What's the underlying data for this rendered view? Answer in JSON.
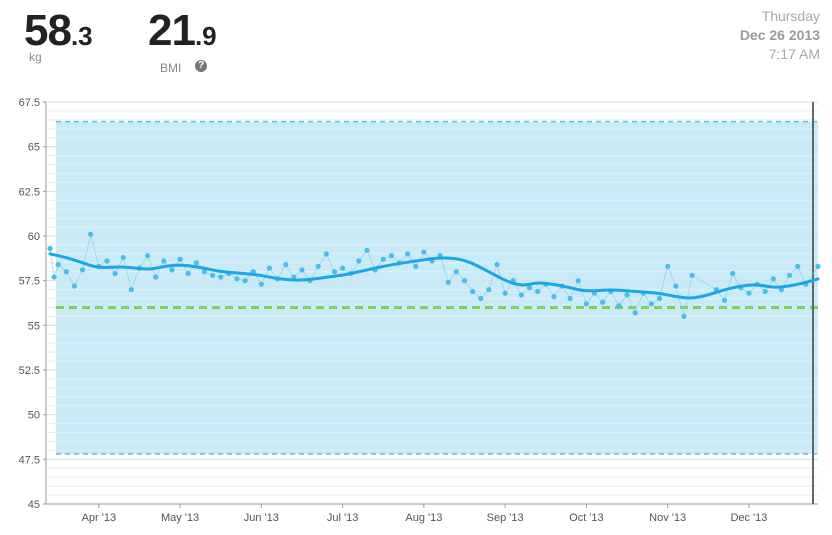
{
  "header": {
    "weight_whole": "58",
    "weight_decimal": ".3",
    "weight_unit": "kg",
    "bmi_whole": "21",
    "bmi_decimal": ".9",
    "bmi_label": "BMI",
    "help_icon_glyph": "?",
    "day": "Thursday",
    "date": "Dec 26 2013",
    "time": "7:17 AM"
  },
  "colors": {
    "band_fill": "#c9ebf7",
    "band_edge": "#5bc4dd",
    "goal_line": "#7dd15e",
    "trend_line": "#1aa7e3",
    "points": "#4cbde8"
  },
  "chart_data": {
    "type": "line",
    "ylim": [
      45,
      67.5
    ],
    "yticks": [
      "45",
      "47.5",
      "50",
      "52.5",
      "55",
      "57.5",
      "60",
      "62.5",
      "65",
      "67.5"
    ],
    "x_ticks": [
      "Apr '13",
      "May '13",
      "Jun '13",
      "Jul '13",
      "Aug '13",
      "Sep '13",
      "Oct '13",
      "Nov '13",
      "Dec '13"
    ],
    "x_tick_positions": [
      1,
      2,
      3,
      4,
      5,
      6,
      7,
      8,
      9
    ],
    "xlim": [
      0.35,
      9.85
    ],
    "healthy_band": [
      47.8,
      66.4
    ],
    "goal": 56.0,
    "grid": true,
    "series": [
      {
        "role": "trend",
        "x": [
          0.4,
          0.6,
          0.8,
          1.0,
          1.3,
          1.6,
          1.8,
          2.0,
          2.3,
          2.5,
          2.8,
          3.0,
          3.2,
          3.5,
          3.8,
          4.0,
          4.3,
          4.6,
          4.9,
          5.2,
          5.5,
          5.8,
          6.0,
          6.2,
          6.4,
          6.6,
          6.8,
          7.0,
          7.3,
          7.6,
          7.9,
          8.1,
          8.3,
          8.5,
          8.7,
          8.9,
          9.1,
          9.3,
          9.5,
          9.7,
          9.85
        ],
        "y": [
          59.0,
          58.8,
          58.5,
          58.2,
          58.3,
          58.1,
          58.3,
          58.4,
          58.2,
          58.0,
          57.9,
          57.8,
          57.6,
          57.5,
          57.7,
          57.8,
          58.1,
          58.4,
          58.6,
          58.8,
          58.7,
          58.0,
          57.5,
          57.2,
          57.4,
          57.3,
          57.1,
          56.9,
          57.0,
          56.9,
          56.8,
          56.6,
          56.5,
          56.7,
          57.0,
          57.2,
          57.3,
          57.1,
          57.2,
          57.4,
          57.6
        ]
      },
      {
        "role": "measurements",
        "x": [
          0.4,
          0.45,
          0.5,
          0.6,
          0.7,
          0.8,
          0.9,
          1.0,
          1.1,
          1.2,
          1.3,
          1.4,
          1.5,
          1.6,
          1.7,
          1.8,
          1.9,
          2.0,
          2.1,
          2.2,
          2.3,
          2.4,
          2.5,
          2.6,
          2.7,
          2.8,
          2.9,
          3.0,
          3.1,
          3.2,
          3.3,
          3.4,
          3.5,
          3.6,
          3.7,
          3.8,
          3.9,
          4.0,
          4.1,
          4.2,
          4.3,
          4.4,
          4.5,
          4.6,
          4.7,
          4.8,
          4.9,
          5.0,
          5.1,
          5.2,
          5.3,
          5.4,
          5.5,
          5.6,
          5.7,
          5.8,
          5.9,
          6.0,
          6.1,
          6.2,
          6.3,
          6.4,
          6.5,
          6.6,
          6.7,
          6.8,
          6.9,
          7.0,
          7.1,
          7.2,
          7.3,
          7.4,
          7.5,
          7.6,
          7.7,
          7.8,
          7.9,
          8.0,
          8.1,
          8.2,
          8.3,
          8.6,
          8.7,
          8.8,
          8.9,
          9.0,
          9.1,
          9.2,
          9.3,
          9.4,
          9.5,
          9.6,
          9.7,
          9.85
        ],
        "y": [
          59.3,
          57.7,
          58.4,
          58.0,
          57.2,
          58.1,
          60.1,
          58.3,
          58.6,
          57.9,
          58.8,
          57.0,
          58.2,
          58.9,
          57.7,
          58.6,
          58.1,
          58.7,
          57.9,
          58.5,
          58.0,
          57.8,
          57.7,
          57.9,
          57.6,
          57.5,
          58.0,
          57.3,
          58.2,
          57.6,
          58.4,
          57.7,
          58.1,
          57.5,
          58.3,
          59.0,
          58.0,
          58.2,
          57.9,
          58.6,
          59.2,
          58.1,
          58.7,
          58.9,
          58.5,
          59.0,
          58.3,
          59.1,
          58.6,
          58.9,
          57.4,
          58.0,
          57.5,
          56.9,
          56.5,
          57.0,
          58.4,
          56.8,
          57.5,
          56.7,
          57.1,
          56.9,
          57.3,
          56.6,
          57.2,
          56.5,
          57.5,
          56.2,
          56.8,
          56.3,
          56.9,
          56.1,
          56.7,
          55.7,
          56.8,
          56.2,
          56.5,
          58.3,
          57.2,
          55.5,
          57.8,
          57.0,
          56.4,
          57.9,
          57.1,
          56.8,
          57.3,
          56.9,
          57.6,
          57.0,
          57.8,
          58.3,
          57.3,
          58.3
        ]
      }
    ]
  }
}
